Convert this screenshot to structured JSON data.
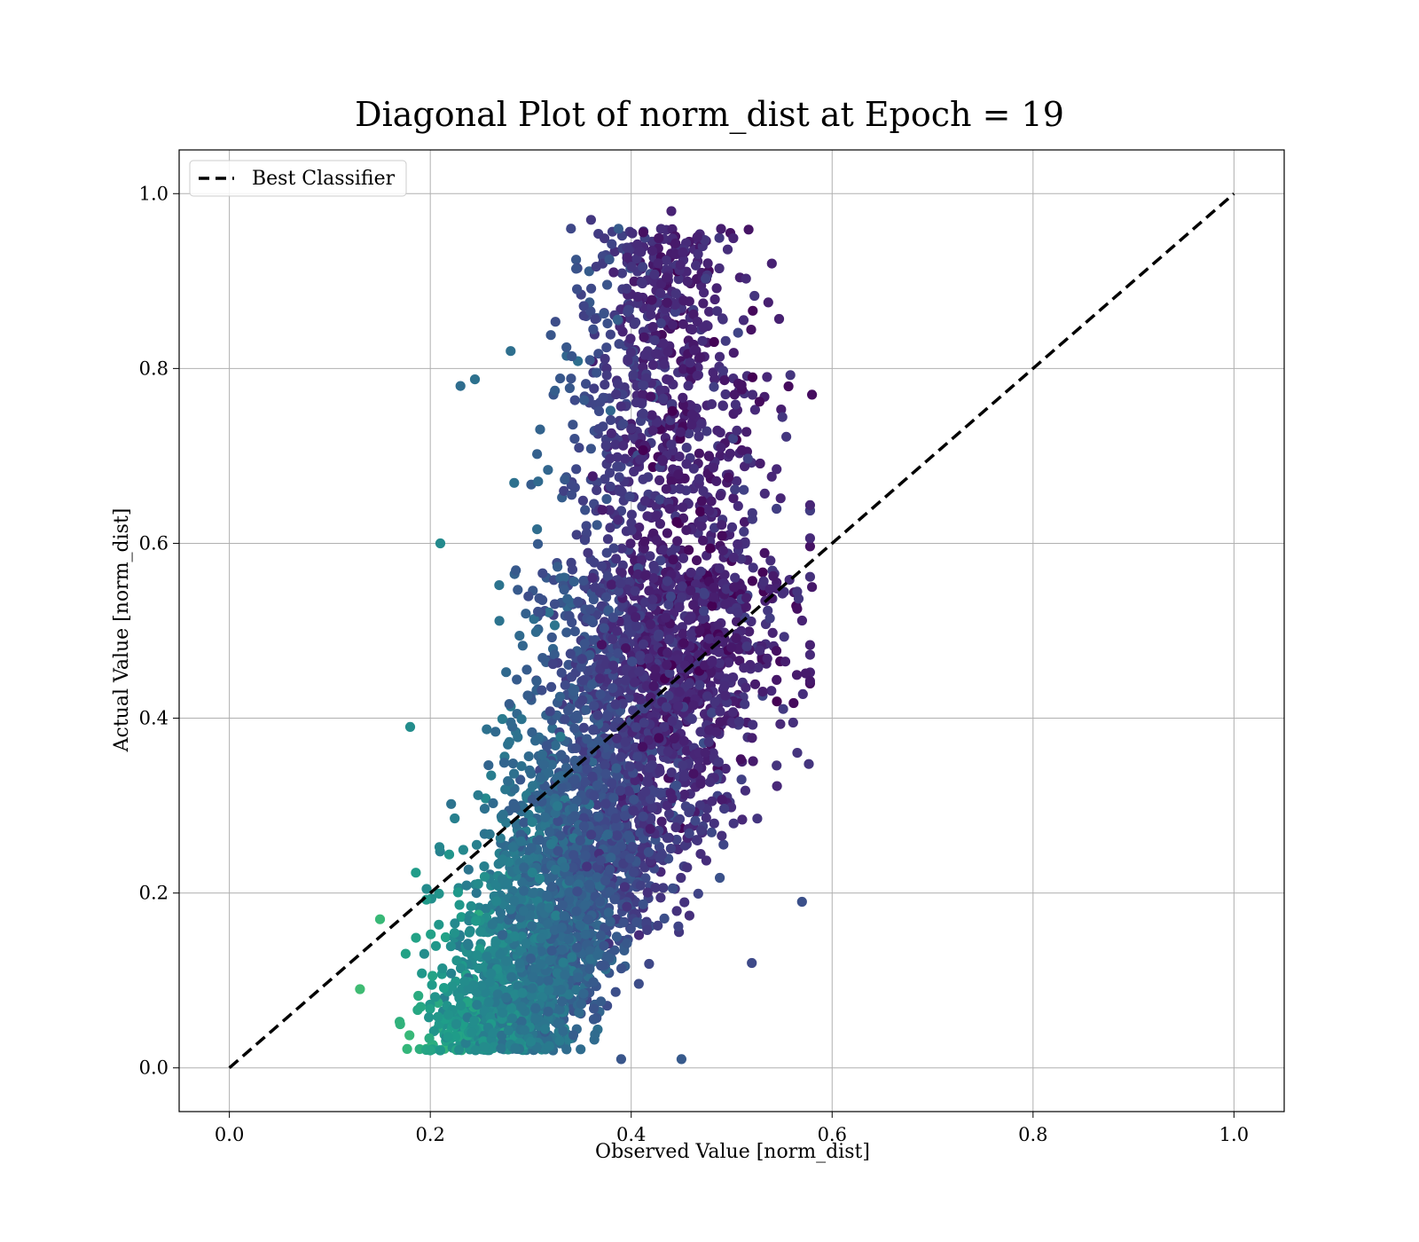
{
  "chart_data": {
    "type": "scatter",
    "title": "Diagonal Plot of norm_dist at Epoch = 19",
    "xlabel": "Observed Value [norm_dist]",
    "ylabel": "Actual Value [norm_dist]",
    "xlim": [
      -0.05,
      1.05
    ],
    "ylim": [
      -0.05,
      1.05
    ],
    "xticks": [
      0.0,
      0.2,
      0.4,
      0.6,
      0.8,
      1.0
    ],
    "yticks": [
      0.0,
      0.2,
      0.4,
      0.6,
      0.8,
      1.0
    ],
    "xtick_labels": [
      "0.0",
      "0.2",
      "0.4",
      "0.6",
      "0.8",
      "1.0"
    ],
    "ytick_labels": [
      "0.0",
      "0.2",
      "0.4",
      "0.6",
      "0.8",
      "1.0"
    ],
    "grid": true,
    "colormap": "viridis",
    "legend": {
      "placement": "upper-left",
      "entries": [
        {
          "label": "Best Classifier",
          "style": "dashed",
          "color": "#000000"
        }
      ]
    },
    "reference_line": {
      "name": "Best Classifier",
      "x": [
        0.0,
        1.0
      ],
      "y": [
        0.0,
        1.0
      ],
      "color": "#000000",
      "dash": "dashed"
    },
    "scatter": {
      "approx_point_count": 4500,
      "x_range": [
        0.13,
        0.58
      ],
      "y_range": [
        0.01,
        0.98
      ],
      "color_trend": "yellow-green at low x and low y, dark purple at x 0.40-0.50",
      "sample_points": [
        [
          0.13,
          0.09
        ],
        [
          0.15,
          0.17
        ],
        [
          0.17,
          0.05
        ],
        [
          0.18,
          0.39
        ],
        [
          0.2,
          0.02
        ],
        [
          0.21,
          0.02
        ],
        [
          0.21,
          0.6
        ],
        [
          0.23,
          0.78
        ],
        [
          0.28,
          0.82
        ],
        [
          0.36,
          0.97
        ],
        [
          0.44,
          0.98
        ],
        [
          0.45,
          0.01
        ],
        [
          0.52,
          0.12
        ],
        [
          0.57,
          0.19
        ],
        [
          0.58,
          0.77
        ],
        [
          0.58,
          0.55
        ],
        [
          0.39,
          0.01
        ],
        [
          0.3,
          0.03
        ],
        [
          0.54,
          0.92
        ],
        [
          0.34,
          0.96
        ]
      ]
    }
  }
}
